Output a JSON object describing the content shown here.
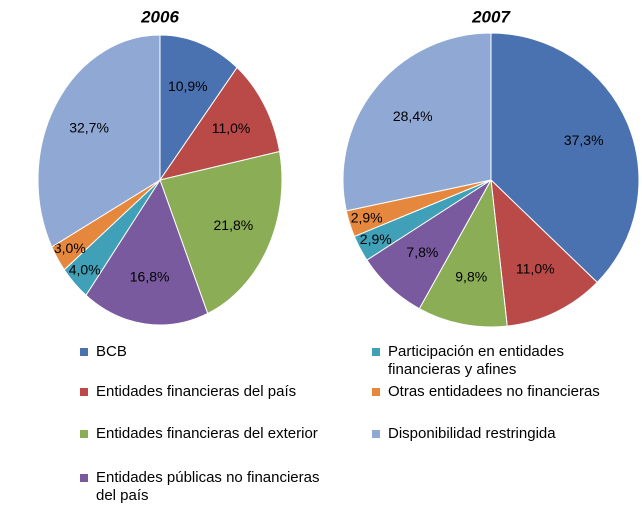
{
  "chart_data": [
    {
      "type": "pie",
      "title": "2006",
      "values": [
        10.9,
        11.0,
        21.8,
        16.8,
        4.0,
        3.0,
        32.7
      ],
      "value_labels": [
        "10,9%",
        "11,0%",
        "21,8%",
        "16,8%",
        "4,0%",
        "3,0%",
        "32,7%"
      ]
    },
    {
      "type": "pie",
      "title": "2007",
      "values": [
        37.3,
        11.0,
        9.8,
        7.8,
        2.9,
        2.9,
        28.4
      ],
      "value_labels": [
        "37,3%",
        "11,0%",
        "9,8%",
        "7,8%",
        "2,9%",
        "2,9%",
        "28,4%"
      ]
    }
  ],
  "legend": {
    "items": [
      {
        "name": "BCB",
        "color": "#4a72b0"
      },
      {
        "name": "Entidades financieras del país",
        "color": "#b94a48"
      },
      {
        "name": "Entidades financieras del exterior",
        "color": "#8bad56"
      },
      {
        "name": "Entidades públicas no financieras del país",
        "color": "#7a5a9e"
      },
      {
        "name": "Participación en entidades financieras y afines",
        "color": "#3fa0b8"
      },
      {
        "name": "Otras entidadees no financieras",
        "color": "#e5883d"
      },
      {
        "name": "Disponibilidad restringida",
        "color": "#8fa8d4"
      }
    ]
  }
}
